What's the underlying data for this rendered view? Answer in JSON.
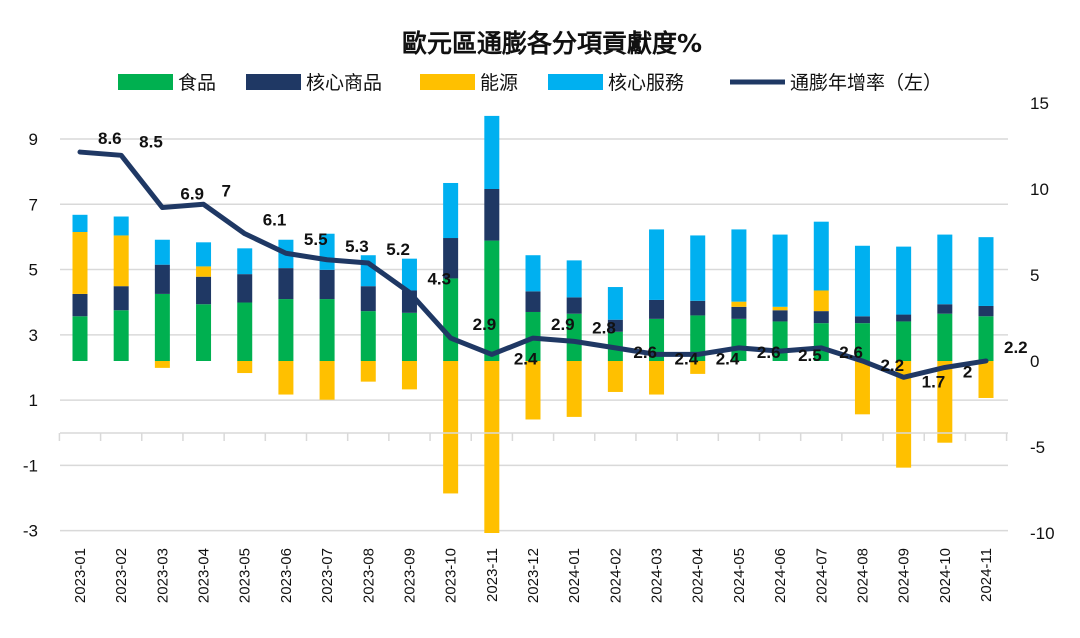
{
  "chart_data": {
    "type": "bar",
    "title": "歐元區通膨各分項貢獻度%",
    "categories": [
      "2023-01",
      "2023-02",
      "2023-03",
      "2023-04",
      "2023-05",
      "2023-06",
      "2023-07",
      "2023-08",
      "2023-09",
      "2023-10",
      "2023-11",
      "2023-12",
      "2024-01",
      "2024-02",
      "2024-03",
      "2024-04",
      "2024-05",
      "2024-06",
      "2024-07",
      "2024-08",
      "2024-09",
      "2024-10",
      "2024-11"
    ],
    "series": [
      {
        "name": "食品",
        "kind": "bar",
        "axis": "right",
        "color": "#00b050",
        "values": [
          2.6,
          2.95,
          3.9,
          3.3,
          3.4,
          3.6,
          3.6,
          2.9,
          2.8,
          4.8,
          7.0,
          2.85,
          2.75,
          1.7,
          2.45,
          2.65,
          2.45,
          2.3,
          2.2,
          2.2,
          2.3,
          2.75,
          2.6
        ]
      },
      {
        "name": "核心商品",
        "kind": "bar",
        "axis": "right",
        "color": "#1f3864",
        "values": [
          1.3,
          1.4,
          1.7,
          1.6,
          1.65,
          1.8,
          1.7,
          1.45,
          1.3,
          2.35,
          3.0,
          1.2,
          0.95,
          0.7,
          1.1,
          0.85,
          0.7,
          0.65,
          0.7,
          0.4,
          0.4,
          0.55,
          0.6
        ]
      },
      {
        "name": "能源",
        "kind": "bar",
        "axis": "right",
        "color": "#ffc000",
        "values": [
          3.6,
          2.95,
          -0.4,
          0.6,
          -0.7,
          -1.95,
          -2.25,
          -1.2,
          -1.65,
          -7.7,
          -10.0,
          -3.4,
          -3.25,
          -1.8,
          -1.95,
          -0.75,
          0.3,
          0.2,
          1.2,
          -3.1,
          -6.2,
          -4.75,
          -2.15
        ]
      },
      {
        "name": "核心服務",
        "kind": "bar",
        "axis": "right",
        "color": "#00b0f0",
        "values": [
          1.0,
          1.1,
          1.45,
          1.4,
          1.5,
          1.65,
          2.1,
          1.8,
          1.85,
          3.2,
          4.25,
          2.1,
          2.15,
          1.9,
          4.1,
          3.8,
          4.2,
          4.2,
          4.0,
          4.1,
          3.95,
          4.05,
          4.0
        ]
      },
      {
        "name": "通膨年增率（左）",
        "kind": "line",
        "axis": "left",
        "color": "#1f3864",
        "values": [
          8.6,
          8.5,
          6.9,
          7,
          6.1,
          5.5,
          5.3,
          5.2,
          4.3,
          2.9,
          2.4,
          2.9,
          2.8,
          2.6,
          2.4,
          2.4,
          2.6,
          2.5,
          2.6,
          2.2,
          1.7,
          2,
          2.2
        ]
      }
    ],
    "left_axis": {
      "ticks": [
        "9",
        "7",
        "5",
        "3",
        "1",
        "-1",
        "-3"
      ],
      "range": [
        -3,
        9
      ]
    },
    "right_axis": {
      "ticks": [
        "15",
        "10",
        "5",
        "0",
        "-5",
        "-10"
      ],
      "range": [
        -10,
        15
      ],
      "negative_color": "#e00000"
    },
    "grid": true,
    "legend_position": "top"
  }
}
